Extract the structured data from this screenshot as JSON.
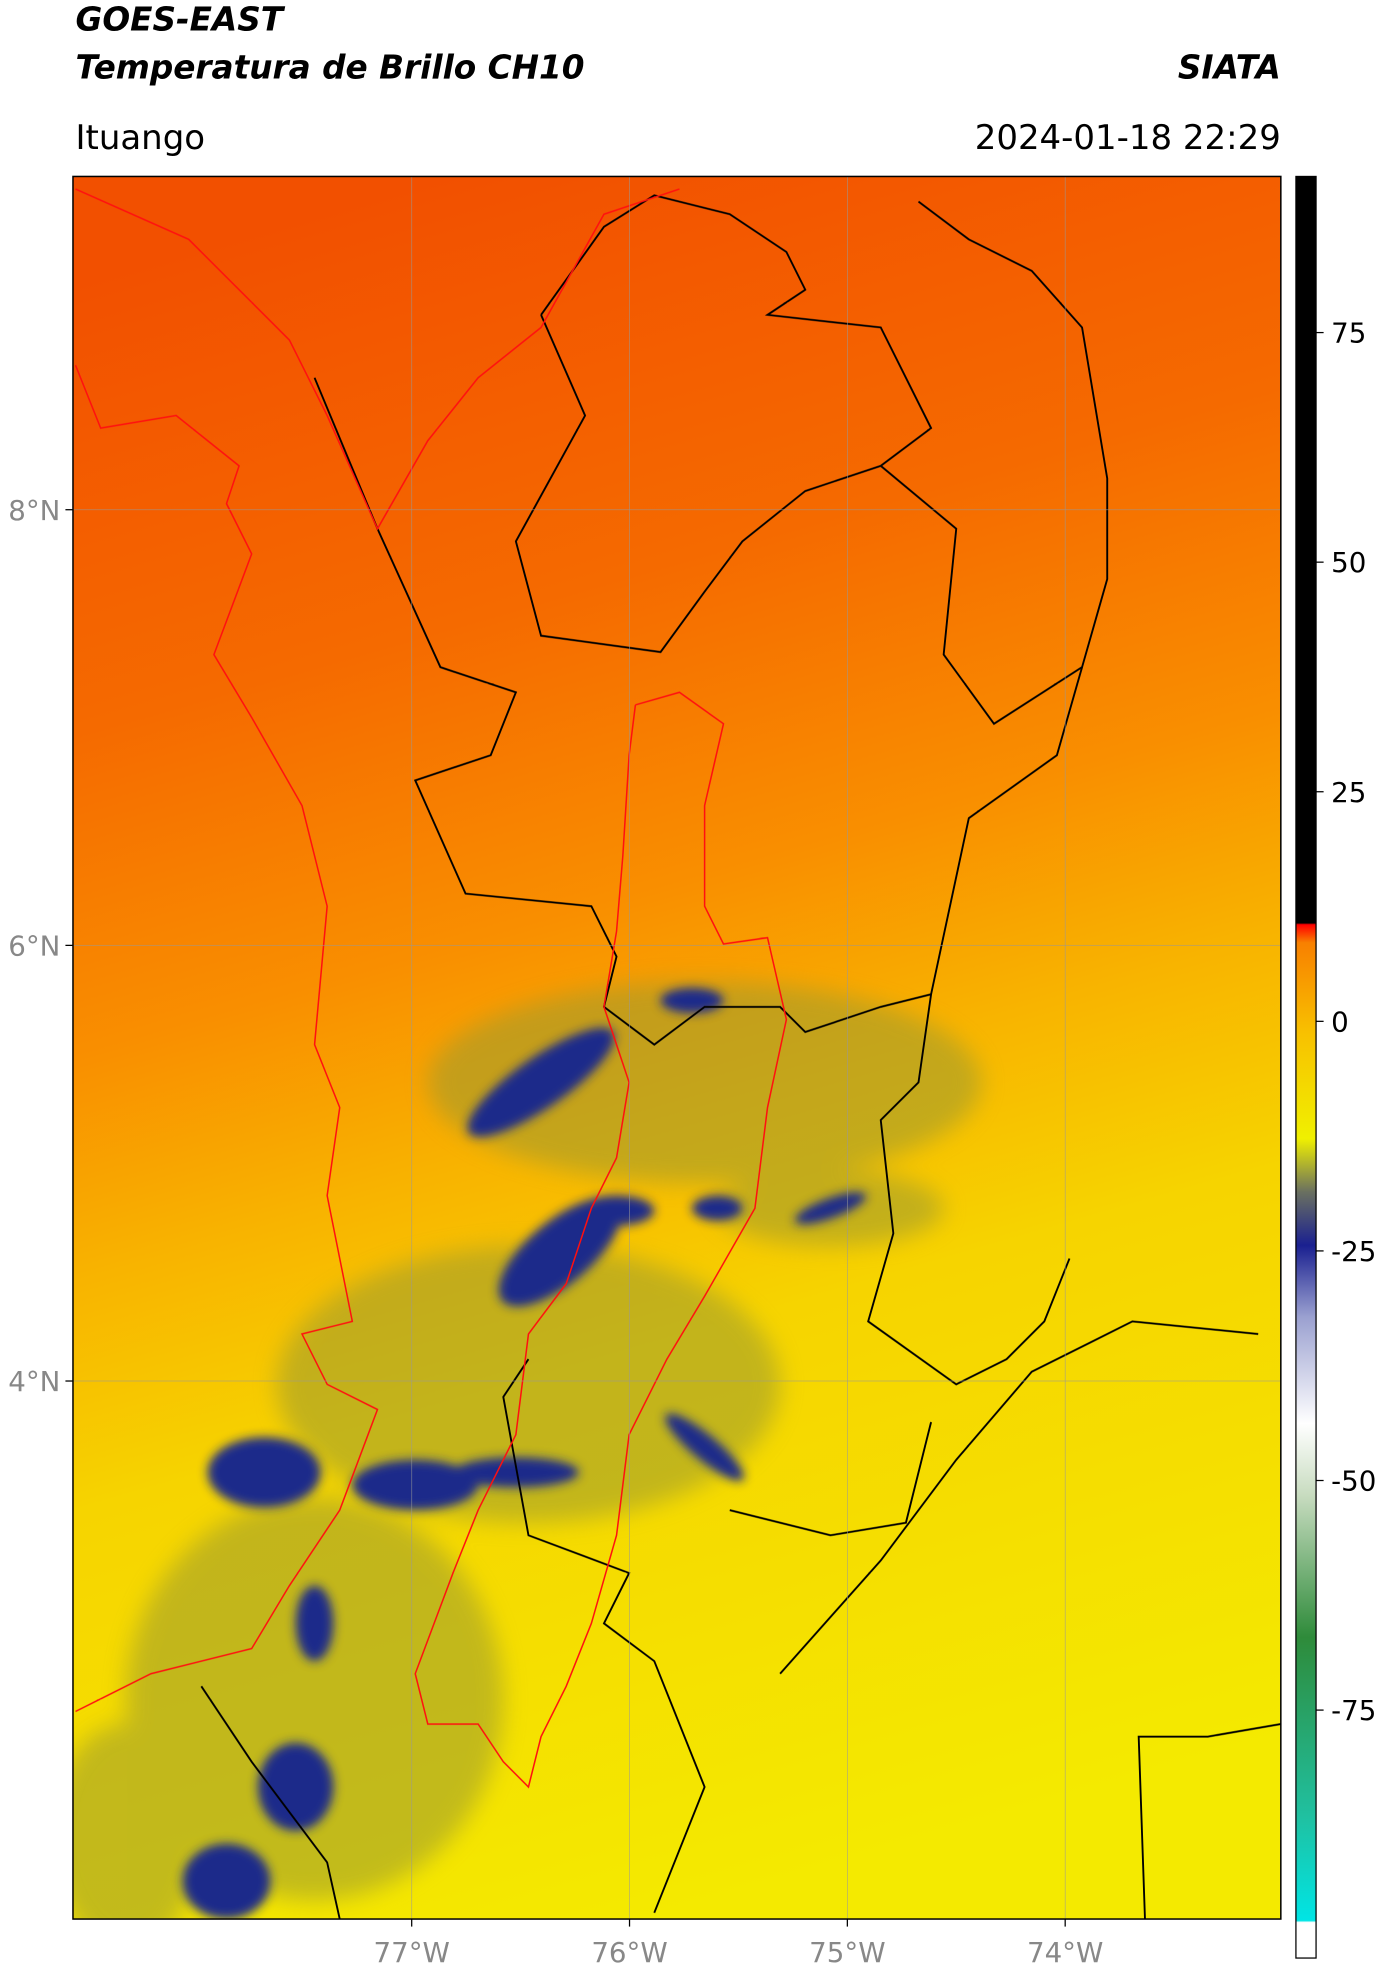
{
  "header": {
    "title_line1": "GOES-EAST",
    "title_line2": "Temperatura de Brillo CH10",
    "source": "SIATA",
    "location": "Ituango",
    "datetime": "2024-01-18 22:29"
  },
  "map": {
    "xlim": [
      -78.555,
      -73.01
    ],
    "ylim": [
      1.53,
      9.53
    ],
    "xticks": [
      {
        "value": -77,
        "label": "77°W"
      },
      {
        "value": -76,
        "label": "76°W"
      },
      {
        "value": -75,
        "label": "75°W"
      },
      {
        "value": -74,
        "label": "74°W"
      }
    ],
    "yticks": [
      {
        "value": 8,
        "label": "8°N"
      },
      {
        "value": 6,
        "label": "6°N"
      },
      {
        "value": 4,
        "label": "4°N"
      }
    ],
    "grid": true
  },
  "colorbar": {
    "lim": [
      -102,
      92
    ],
    "ticks": [
      75,
      50,
      25,
      0,
      -25,
      -50,
      -75
    ]
  }
}
